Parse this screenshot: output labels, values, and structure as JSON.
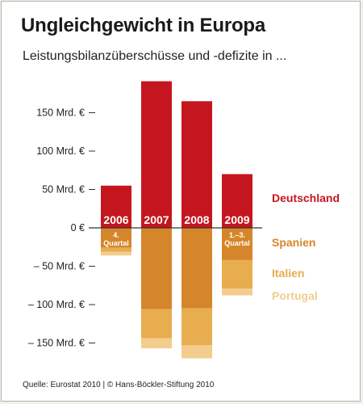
{
  "title": "Ungleichgewicht in Europa",
  "subtitle": "Leistungsbilanzüberschüsse und -defizite in ...",
  "source": "Quelle: Eurostat 2010 | © Hans-Böckler-Stiftung 2010",
  "colors": {
    "Deutschland": "#c5161f",
    "Spanien": "#d6862a",
    "Italien": "#e8ad4f",
    "Portugal": "#f2cd8e"
  },
  "chart_data": {
    "type": "bar",
    "stacked": true,
    "unit": "Mrd. €",
    "categories": [
      "2006",
      "2007",
      "2008",
      "2009"
    ],
    "category_notes": [
      "4. Quartal",
      "",
      "",
      "1.–3. Quartal"
    ],
    "series": [
      {
        "name": "Deutschland",
        "values": [
          55,
          191,
          165,
          70
        ]
      },
      {
        "name": "Spanien",
        "values": [
          -26,
          -106,
          -105,
          -42
        ]
      },
      {
        "name": "Italien",
        "values": [
          -5,
          -38,
          -48,
          -37
        ]
      },
      {
        "name": "Portugal",
        "values": [
          -5,
          -13,
          -17,
          -9
        ]
      }
    ],
    "ylim": [
      -175,
      195
    ],
    "yticks": [
      150,
      100,
      50,
      0,
      -50,
      -100,
      -150
    ],
    "ytick_labels": [
      "150 Mrd. €",
      "100 Mrd. €",
      "50 Mrd. €",
      "0 €",
      "– 50 Mrd. €",
      "– 100 Mrd. €",
      "– 150 Mrd. €"
    ],
    "legend": [
      "Deutschland",
      "Spanien",
      "Italien",
      "Portugal"
    ],
    "legend_position": "right",
    "grid": false
  }
}
